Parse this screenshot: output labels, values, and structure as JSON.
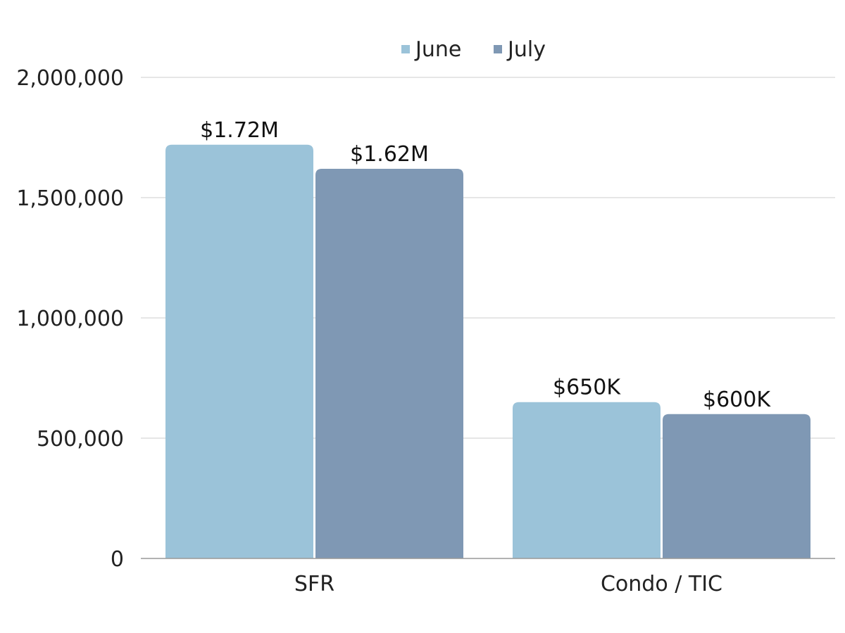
{
  "chart_data": {
    "type": "bar",
    "categories": [
      "SFR",
      "Condo / TIC"
    ],
    "series": [
      {
        "name": "June",
        "values": [
          1720000,
          650000
        ],
        "labels": [
          "$1.72M",
          "$650K"
        ],
        "color": "#9bc3d9"
      },
      {
        "name": "July",
        "values": [
          1620000,
          600000
        ],
        "labels": [
          "$1.62M",
          "$600K"
        ],
        "color": "#7f98b4"
      }
    ],
    "y_ticks": [
      0,
      500000,
      1000000,
      1500000,
      2000000
    ],
    "y_tick_labels": [
      "0",
      "500,000",
      "1,000,000",
      "1,500,000",
      "2,000,000"
    ],
    "ylim": [
      0,
      2000000
    ],
    "grid": true,
    "legend": "top-center",
    "title": "",
    "xlabel": "",
    "ylabel": ""
  },
  "colors": {
    "grid": "#cccccc",
    "axis": "#999999"
  }
}
